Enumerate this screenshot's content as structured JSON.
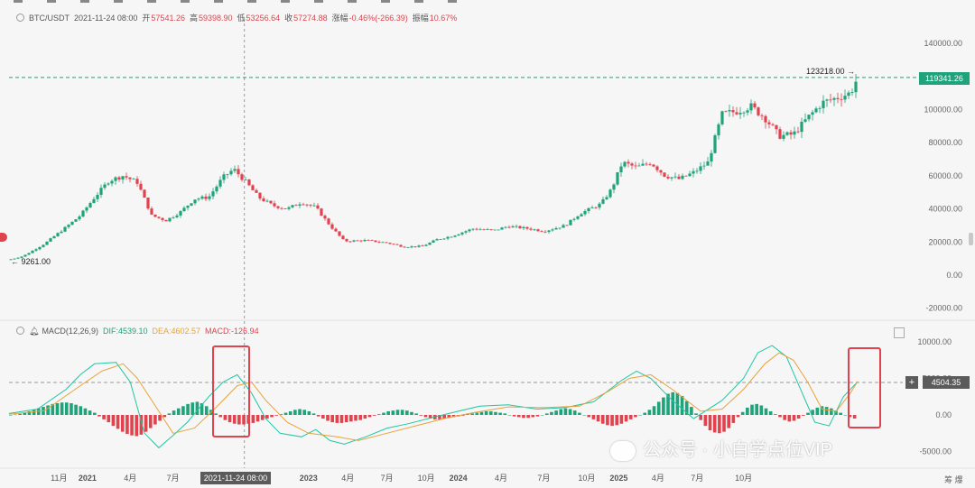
{
  "ohlc": {
    "symbol": "BTC/USDT",
    "date": "2021-11-24 08:00",
    "open_label": "开",
    "open": "57541.26",
    "high_label": "高",
    "high": "59398.90",
    "low_label": "低",
    "low": "53256.64",
    "close_label": "收",
    "close": "57274.88",
    "change_label": "涨幅",
    "change": "-0.46%(-266.39)",
    "amp_label": "振幅",
    "amp": "10.67%"
  },
  "macd_header": {
    "name": "MACD(12,26,9)",
    "dif": "DIF:4539.10",
    "dea": "DEA:4602.57",
    "macd": "MACD:-126.94"
  },
  "labels": {
    "current_price": "119341.26",
    "macd_value": "4504.35",
    "plus": "+",
    "crosshair_date": "2021-11-24 08:00",
    "ath": "123218.00 →",
    "atl": "← 9261.00",
    "corner": "筹 爆",
    "watermark": "公众号 · 小白学点位VIP"
  },
  "colors": {
    "up": "#1ea37a",
    "down": "#e0434d",
    "dif": "#1ec7a3",
    "dea": "#e8a33a",
    "highlight_box": "#e0434d"
  },
  "chart_data": {
    "type": "candlestick+macd",
    "price_axis_ticks": [
      "140000.00",
      "120000.00",
      "100000.00",
      "80000.00",
      "60000.00",
      "40000.00",
      "20000.00",
      "0.00",
      "-20000.00"
    ],
    "price_tick_values": [
      140000,
      120000,
      100000,
      80000,
      60000,
      40000,
      20000,
      0,
      -20000
    ],
    "macd_axis_ticks": [
      "10000.00",
      "5000.00",
      "0.00",
      "-5000.00"
    ],
    "macd_tick_values": [
      10000,
      5000,
      0,
      -5000
    ],
    "x_ticks": [
      "11月",
      "2021",
      "4月",
      "7月",
      "10月",
      "2023",
      "4月",
      "7月",
      "10月",
      "2024",
      "4月",
      "7月",
      "10月",
      "2025",
      "4月",
      "7月",
      "10月"
    ],
    "x_tick_t": [
      0.07,
      0.11,
      0.17,
      0.23,
      0.285,
      0.42,
      0.475,
      0.53,
      0.585,
      0.63,
      0.69,
      0.75,
      0.81,
      0.855,
      0.91,
      0.965,
      1.03
    ],
    "price_path": [
      [
        0,
        9261
      ],
      [
        0.02,
        11500
      ],
      [
        0.05,
        19000
      ],
      [
        0.08,
        29000
      ],
      [
        0.1,
        36000
      ],
      [
        0.12,
        47000
      ],
      [
        0.14,
        57000
      ],
      [
        0.16,
        60000
      ],
      [
        0.18,
        56000
      ],
      [
        0.2,
        36000
      ],
      [
        0.22,
        33000
      ],
      [
        0.24,
        38000
      ],
      [
        0.26,
        46000
      ],
      [
        0.28,
        47000
      ],
      [
        0.3,
        59000
      ],
      [
        0.315,
        64000
      ],
      [
        0.33,
        57274.88
      ],
      [
        0.35,
        47000
      ],
      [
        0.37,
        42000
      ],
      [
        0.39,
        40000
      ],
      [
        0.41,
        44000
      ],
      [
        0.43,
        41000
      ],
      [
        0.45,
        30000
      ],
      [
        0.47,
        20500
      ],
      [
        0.5,
        21000
      ],
      [
        0.53,
        19500
      ],
      [
        0.555,
        17000
      ],
      [
        0.58,
        17500
      ],
      [
        0.6,
        21500
      ],
      [
        0.62,
        23500
      ],
      [
        0.65,
        28000
      ],
      [
        0.68,
        27000
      ],
      [
        0.7,
        29500
      ],
      [
        0.73,
        28000
      ],
      [
        0.75,
        26500
      ],
      [
        0.78,
        30000
      ],
      [
        0.8,
        37000
      ],
      [
        0.83,
        43000
      ],
      [
        0.845,
        52000
      ],
      [
        0.86,
        68000
      ],
      [
        0.88,
        65000
      ],
      [
        0.9,
        68000
      ],
      [
        0.92,
        60000
      ],
      [
        0.94,
        58000
      ],
      [
        0.96,
        62000
      ],
      [
        0.98,
        68000
      ],
      [
        1.0,
        97000
      ],
      [
        1.02,
        99000
      ],
      [
        1.04,
        102000
      ],
      [
        1.06,
        95000
      ],
      [
        1.08,
        84000
      ],
      [
        1.1,
        85000
      ],
      [
        1.12,
        95000
      ],
      [
        1.14,
        104000
      ],
      [
        1.16,
        107000
      ],
      [
        1.18,
        110000
      ],
      [
        1.19,
        119341.26
      ]
    ],
    "dif_path": [
      [
        0,
        200
      ],
      [
        0.04,
        800
      ],
      [
        0.08,
        3500
      ],
      [
        0.1,
        5500
      ],
      [
        0.12,
        7000
      ],
      [
        0.15,
        7200
      ],
      [
        0.17,
        4500
      ],
      [
        0.19,
        -2500
      ],
      [
        0.21,
        -4500
      ],
      [
        0.23,
        -2800
      ],
      [
        0.25,
        -1000
      ],
      [
        0.28,
        2500
      ],
      [
        0.3,
        4500
      ],
      [
        0.32,
        5500
      ],
      [
        0.34,
        3000
      ],
      [
        0.36,
        -500
      ],
      [
        0.38,
        -2500
      ],
      [
        0.41,
        -3000
      ],
      [
        0.43,
        -2000
      ],
      [
        0.45,
        -3500
      ],
      [
        0.47,
        -4000
      ],
      [
        0.5,
        -3000
      ],
      [
        0.53,
        -1800
      ],
      [
        0.56,
        -1200
      ],
      [
        0.6,
        -200
      ],
      [
        0.63,
        500
      ],
      [
        0.66,
        1200
      ],
      [
        0.7,
        1400
      ],
      [
        0.74,
        800
      ],
      [
        0.78,
        1000
      ],
      [
        0.82,
        1800
      ],
      [
        0.86,
        4800
      ],
      [
        0.88,
        6000
      ],
      [
        0.9,
        5000
      ],
      [
        0.93,
        2000
      ],
      [
        0.96,
        -500
      ],
      [
        1.0,
        2000
      ],
      [
        1.03,
        5000
      ],
      [
        1.05,
        8500
      ],
      [
        1.07,
        9500
      ],
      [
        1.09,
        8000
      ],
      [
        1.11,
        3500
      ],
      [
        1.13,
        -1000
      ],
      [
        1.15,
        -1500
      ],
      [
        1.17,
        2500
      ],
      [
        1.19,
        4539.1
      ]
    ],
    "dea_path": [
      [
        0,
        100
      ],
      [
        0.05,
        600
      ],
      [
        0.1,
        4000
      ],
      [
        0.13,
        6000
      ],
      [
        0.16,
        7000
      ],
      [
        0.18,
        5000
      ],
      [
        0.21,
        500
      ],
      [
        0.23,
        -2500
      ],
      [
        0.26,
        -1800
      ],
      [
        0.29,
        1000
      ],
      [
        0.32,
        4000
      ],
      [
        0.34,
        4500
      ],
      [
        0.36,
        2000
      ],
      [
        0.39,
        -1000
      ],
      [
        0.42,
        -2500
      ],
      [
        0.46,
        -3000
      ],
      [
        0.49,
        -3500
      ],
      [
        0.53,
        -2500
      ],
      [
        0.57,
        -1500
      ],
      [
        0.61,
        -500
      ],
      [
        0.65,
        300
      ],
      [
        0.7,
        1100
      ],
      [
        0.75,
        1000
      ],
      [
        0.8,
        1200
      ],
      [
        0.84,
        3200
      ],
      [
        0.87,
        5000
      ],
      [
        0.9,
        5500
      ],
      [
        0.93,
        3500
      ],
      [
        0.97,
        500
      ],
      [
        1.0,
        800
      ],
      [
        1.03,
        3500
      ],
      [
        1.06,
        7000
      ],
      [
        1.08,
        8500
      ],
      [
        1.1,
        7500
      ],
      [
        1.12,
        4500
      ],
      [
        1.14,
        800
      ],
      [
        1.16,
        500
      ],
      [
        1.18,
        3000
      ],
      [
        1.19,
        4602.57
      ]
    ],
    "macd_hist_bins": [
      0,
      50,
      150,
      300,
      500,
      700,
      900,
      1100,
      1300,
      1500,
      1600,
      1700,
      1700,
      1600,
      1400,
      1200,
      900,
      600,
      300,
      -200,
      -600,
      -1000,
      -1500,
      -1900,
      -2300,
      -2600,
      -2800,
      -2900,
      -2700,
      -2300,
      -1800,
      -1300,
      -800,
      -300,
      200,
      600,
      900,
      1200,
      1500,
      1700,
      1800,
      1600,
      1200,
      700,
      200,
      -300,
      -700,
      -1000,
      -1200,
      -1300,
      -1300,
      -1200,
      -1100,
      -900,
      -700,
      -500,
      -300,
      -100,
      100,
      300,
      500,
      700,
      800,
      700,
      500,
      200,
      -200,
      -500,
      -800,
      -1000,
      -1100,
      -1100,
      -1000,
      -900,
      -800,
      -700,
      -500,
      -300,
      -100,
      100,
      300,
      500,
      600,
      700,
      700,
      600,
      400,
      200,
      -100,
      -300,
      -500,
      -600,
      -600,
      -500,
      -400,
      -300,
      -200,
      -100,
      100,
      200,
      300,
      400,
      500,
      500,
      400,
      300,
      200,
      0,
      -200,
      -300,
      -400,
      -400,
      -300,
      -200,
      0,
      200,
      400,
      600,
      800,
      900,
      800,
      600,
      300,
      0,
      -300,
      -600,
      -900,
      -1200,
      -1400,
      -1500,
      -1400,
      -1200,
      -900,
      -600,
      -300,
      0,
      300,
      700,
      1200,
      1800,
      2400,
      2900,
      3100,
      3000,
      2600,
      1900,
      1100,
      200,
      -700,
      -1500,
      -2100,
      -2400,
      -2500,
      -2300,
      -1800,
      -1100,
      -300,
      400,
      1000,
      1400,
      1500,
      1300,
      900,
      500,
      100,
      -300,
      -700,
      -900,
      -800,
      -500,
      -100,
      300,
      700,
      1000,
      1200,
      1100,
      900,
      600,
      300,
      0,
      -300,
      -500
    ]
  }
}
